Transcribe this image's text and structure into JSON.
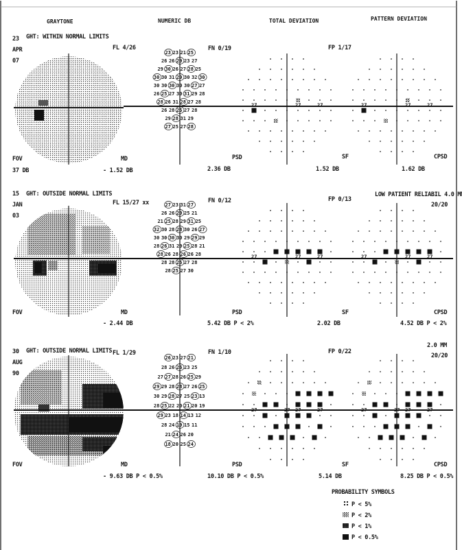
{
  "headers": {
    "graytone": "GRAYTONE",
    "numeric": "NUMERIC DB",
    "total": "TOTAL DEVIATION",
    "pattern": "PATTERN DEVIATION"
  },
  "tests": [
    {
      "date": [
        "23",
        "APR",
        "07"
      ],
      "ght": "GHT: WITHIN NORMAL LIMITS",
      "fl": "FL  4/26",
      "fn": "FN 0/19",
      "fp": "FP  1/17",
      "note1": "",
      "note2": "",
      "fov": "FOV",
      "fov_value": "37 DB",
      "md_label": "MD",
      "md": "- 1.52 DB",
      "psd_label": "PSD",
      "psd": "2.36 DB",
      "sf_label": "SF",
      "sf": "1.52 DB",
      "cpsd_label": "CPSD",
      "cpsd": "1.62 DB",
      "numeric_rows": [
        [
          "23",
          "23",
          "21",
          "25"
        ],
        [
          "26",
          "26",
          "29",
          "23",
          "27"
        ],
        [
          "29",
          "30",
          "26",
          "27",
          "28",
          "25"
        ],
        [
          "30",
          "30",
          "31",
          "29",
          "30",
          "32",
          "30"
        ],
        [
          "30",
          "30",
          "30",
          "30",
          "30",
          "27",
          "27"
        ],
        [
          "26",
          "25",
          "27",
          "30",
          "31",
          "29",
          "28"
        ],
        [
          "28",
          "26",
          "31",
          "28",
          "27",
          "28"
        ],
        [
          "26",
          "28",
          "25",
          "27",
          "28"
        ],
        [
          "29",
          "28",
          "31",
          "29"
        ],
        [
          "27",
          "25",
          "27",
          "28"
        ]
      ],
      "total_marks": [
        "27",
        "27",
        "27"
      ],
      "pattern_marks": [
        "27",
        "27",
        "27"
      ]
    },
    {
      "date": [
        "15",
        "JAN",
        "03"
      ],
      "ght": "GHT: OUTSIDE NORMAL LIMITS",
      "fl": "FL  15/27 xx",
      "fn": "FN 0/12",
      "fp": "FP  0/13",
      "note1": "LOW PATIENT RELIABIL 4.0 MM",
      "note2": "20/20",
      "fov": "FOV",
      "fov_value": "",
      "md_label": "MD",
      "md": "- 2.44 DB",
      "psd_label": "PSD",
      "psd": "5.42 DB  P <  2%",
      "sf_label": "SF",
      "sf": "2.02 DB",
      "cpsd_label": "CPSD",
      "cpsd": "4.52 DB  P <  2%",
      "numeric_rows": [
        [
          "27",
          "23",
          "31",
          "27"
        ],
        [
          "26",
          "26",
          "29",
          "25",
          "21"
        ],
        [
          "21",
          "25",
          "28",
          "29",
          "31",
          "25"
        ],
        [
          "32",
          "30",
          "28",
          "28",
          "30",
          "26",
          "27"
        ],
        [
          "30",
          "30",
          "30",
          "30",
          "29",
          "29",
          "29"
        ],
        [
          "28",
          "26",
          "31",
          "29",
          "25",
          "28",
          "21"
        ],
        [
          "28",
          "26",
          "28",
          "26",
          "26",
          "28"
        ],
        [
          "28",
          "28",
          "25",
          "27",
          "28"
        ],
        [
          "28",
          "25",
          "27",
          "30"
        ]
      ],
      "total_marks": [
        "27",
        "27",
        "27"
      ],
      "pattern_marks": [
        "27",
        "27",
        "27"
      ]
    },
    {
      "date": [
        "30",
        "AUG",
        "90"
      ],
      "ght": "GHT: OUTSIDE NORMAL LIMITS",
      "fl": "FL  1/29",
      "fn": "FN 1/10",
      "fp": "FP  0/22",
      "note1": "2.0 MM",
      "note2": "20/20",
      "fov": "FOV",
      "fov_value": "",
      "md_label": "MD",
      "md": "- 9.63 DB  P < 0.5%",
      "psd_label": "PSD",
      "psd": "10.10 DB  P < 0.5%",
      "sf_label": "SF",
      "sf": "5.14 DB",
      "cpsd_label": "CPSD",
      "cpsd": "8.25 DB  P < 0.5%",
      "numeric_rows": [
        [
          "26",
          "23",
          "27",
          "21"
        ],
        [
          "28",
          "26",
          "26",
          "23",
          "25"
        ],
        [
          "27",
          "27",
          "28",
          "26",
          "25",
          "29"
        ],
        [
          "29",
          "29",
          "28",
          "28",
          "27",
          "26",
          "25"
        ],
        [
          "30",
          "29",
          "28",
          "27",
          "25",
          "23",
          "13"
        ],
        [
          "28",
          "25",
          "22",
          "20",
          "21",
          "20",
          "19"
        ],
        [
          "29",
          "23",
          "18",
          "14",
          "13",
          "12"
        ],
        [
          "28",
          "24",
          "19",
          "15",
          "11"
        ],
        [
          "21",
          "24",
          "26",
          "20"
        ],
        [
          "18",
          "20",
          "25",
          "24"
        ]
      ],
      "total_marks": [
        "27",
        "27",
        "27",
        "27"
      ],
      "pattern_marks": [
        "27",
        "27",
        "27",
        "27"
      ]
    }
  ],
  "legend": {
    "title": "PROBABILITY SYMBOLS",
    "items": [
      "P <  5%",
      "P <  2%",
      "P <  1%",
      "P < 0.5%"
    ]
  }
}
